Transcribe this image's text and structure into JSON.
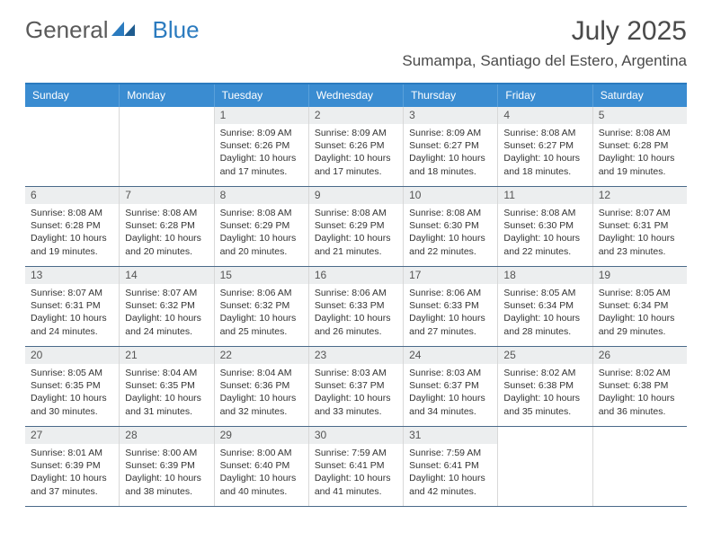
{
  "brand": {
    "part1": "General",
    "part2": "Blue"
  },
  "title": "July 2025",
  "location": "Sumampa, Santiago del Estero, Argentina",
  "colors": {
    "header_bg": "#3a8cd1",
    "border_accent": "#2b7bbf",
    "daynum_bg": "#eceeef",
    "text": "#333333"
  },
  "weekdays": [
    "Sunday",
    "Monday",
    "Tuesday",
    "Wednesday",
    "Thursday",
    "Friday",
    "Saturday"
  ],
  "weeks": [
    [
      null,
      null,
      {
        "n": "1",
        "sr": "8:09 AM",
        "ss": "6:26 PM",
        "dl": "10 hours and 17 minutes."
      },
      {
        "n": "2",
        "sr": "8:09 AM",
        "ss": "6:26 PM",
        "dl": "10 hours and 17 minutes."
      },
      {
        "n": "3",
        "sr": "8:09 AM",
        "ss": "6:27 PM",
        "dl": "10 hours and 18 minutes."
      },
      {
        "n": "4",
        "sr": "8:08 AM",
        "ss": "6:27 PM",
        "dl": "10 hours and 18 minutes."
      },
      {
        "n": "5",
        "sr": "8:08 AM",
        "ss": "6:28 PM",
        "dl": "10 hours and 19 minutes."
      }
    ],
    [
      {
        "n": "6",
        "sr": "8:08 AM",
        "ss": "6:28 PM",
        "dl": "10 hours and 19 minutes."
      },
      {
        "n": "7",
        "sr": "8:08 AM",
        "ss": "6:28 PM",
        "dl": "10 hours and 20 minutes."
      },
      {
        "n": "8",
        "sr": "8:08 AM",
        "ss": "6:29 PM",
        "dl": "10 hours and 20 minutes."
      },
      {
        "n": "9",
        "sr": "8:08 AM",
        "ss": "6:29 PM",
        "dl": "10 hours and 21 minutes."
      },
      {
        "n": "10",
        "sr": "8:08 AM",
        "ss": "6:30 PM",
        "dl": "10 hours and 22 minutes."
      },
      {
        "n": "11",
        "sr": "8:08 AM",
        "ss": "6:30 PM",
        "dl": "10 hours and 22 minutes."
      },
      {
        "n": "12",
        "sr": "8:07 AM",
        "ss": "6:31 PM",
        "dl": "10 hours and 23 minutes."
      }
    ],
    [
      {
        "n": "13",
        "sr": "8:07 AM",
        "ss": "6:31 PM",
        "dl": "10 hours and 24 minutes."
      },
      {
        "n": "14",
        "sr": "8:07 AM",
        "ss": "6:32 PM",
        "dl": "10 hours and 24 minutes."
      },
      {
        "n": "15",
        "sr": "8:06 AM",
        "ss": "6:32 PM",
        "dl": "10 hours and 25 minutes."
      },
      {
        "n": "16",
        "sr": "8:06 AM",
        "ss": "6:33 PM",
        "dl": "10 hours and 26 minutes."
      },
      {
        "n": "17",
        "sr": "8:06 AM",
        "ss": "6:33 PM",
        "dl": "10 hours and 27 minutes."
      },
      {
        "n": "18",
        "sr": "8:05 AM",
        "ss": "6:34 PM",
        "dl": "10 hours and 28 minutes."
      },
      {
        "n": "19",
        "sr": "8:05 AM",
        "ss": "6:34 PM",
        "dl": "10 hours and 29 minutes."
      }
    ],
    [
      {
        "n": "20",
        "sr": "8:05 AM",
        "ss": "6:35 PM",
        "dl": "10 hours and 30 minutes."
      },
      {
        "n": "21",
        "sr": "8:04 AM",
        "ss": "6:35 PM",
        "dl": "10 hours and 31 minutes."
      },
      {
        "n": "22",
        "sr": "8:04 AM",
        "ss": "6:36 PM",
        "dl": "10 hours and 32 minutes."
      },
      {
        "n": "23",
        "sr": "8:03 AM",
        "ss": "6:37 PM",
        "dl": "10 hours and 33 minutes."
      },
      {
        "n": "24",
        "sr": "8:03 AM",
        "ss": "6:37 PM",
        "dl": "10 hours and 34 minutes."
      },
      {
        "n": "25",
        "sr": "8:02 AM",
        "ss": "6:38 PM",
        "dl": "10 hours and 35 minutes."
      },
      {
        "n": "26",
        "sr": "8:02 AM",
        "ss": "6:38 PM",
        "dl": "10 hours and 36 minutes."
      }
    ],
    [
      {
        "n": "27",
        "sr": "8:01 AM",
        "ss": "6:39 PM",
        "dl": "10 hours and 37 minutes."
      },
      {
        "n": "28",
        "sr": "8:00 AM",
        "ss": "6:39 PM",
        "dl": "10 hours and 38 minutes."
      },
      {
        "n": "29",
        "sr": "8:00 AM",
        "ss": "6:40 PM",
        "dl": "10 hours and 40 minutes."
      },
      {
        "n": "30",
        "sr": "7:59 AM",
        "ss": "6:41 PM",
        "dl": "10 hours and 41 minutes."
      },
      {
        "n": "31",
        "sr": "7:59 AM",
        "ss": "6:41 PM",
        "dl": "10 hours and 42 minutes."
      },
      null,
      null
    ]
  ],
  "labels": {
    "sunrise": "Sunrise:",
    "sunset": "Sunset:",
    "daylight": "Daylight:"
  }
}
